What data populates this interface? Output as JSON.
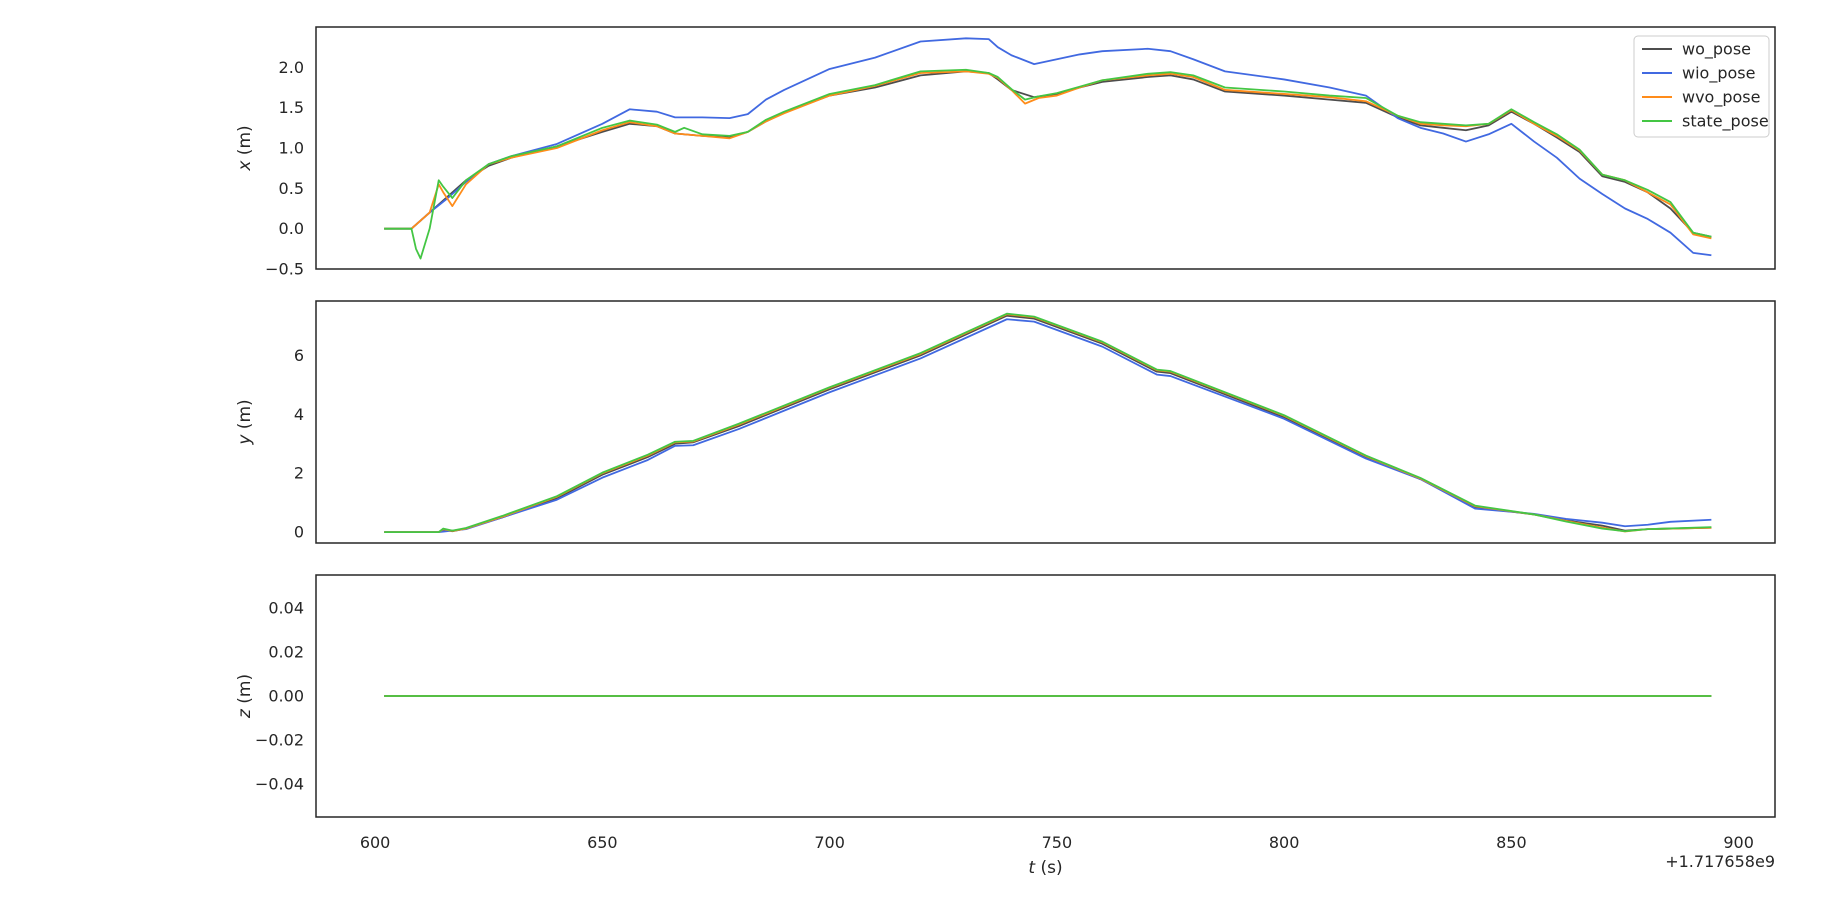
{
  "chart_data": [
    {
      "type": "line",
      "ylabel_var": "x",
      "ylabel_unit": " (m)",
      "xlim": [
        587,
        908
      ],
      "ylim": [
        -0.5,
        2.5
      ],
      "yticks": [
        -0.5,
        0.0,
        0.5,
        1.0,
        1.5,
        2.0
      ],
      "ytick_labels": [
        "−0.5",
        "0.0",
        "0.5",
        "1.0",
        "1.5",
        "2.0"
      ],
      "grid": false,
      "legend": "top-right",
      "series": [
        {
          "name": "wo_pose",
          "color": "#4d4d4d",
          "x": [
            602,
            608,
            612,
            616,
            620,
            625,
            630,
            640,
            650,
            656,
            662,
            666,
            672,
            678,
            682,
            686,
            690,
            700,
            710,
            720,
            730,
            735,
            737,
            740,
            745,
            750,
            755,
            760,
            770,
            775,
            780,
            787,
            800,
            810,
            818,
            825,
            830,
            835,
            840,
            845,
            850,
            855,
            860,
            865,
            870,
            875,
            880,
            885,
            890,
            894
          ],
          "y": [
            0.0,
            0.0,
            0.2,
            0.4,
            0.6,
            0.78,
            0.88,
            1.02,
            1.2,
            1.3,
            1.27,
            1.18,
            1.15,
            1.13,
            1.2,
            1.33,
            1.44,
            1.65,
            1.75,
            1.9,
            1.95,
            1.93,
            1.85,
            1.72,
            1.63,
            1.67,
            1.75,
            1.82,
            1.88,
            1.9,
            1.85,
            1.7,
            1.65,
            1.6,
            1.56,
            1.38,
            1.28,
            1.25,
            1.22,
            1.28,
            1.45,
            1.3,
            1.13,
            0.95,
            0.65,
            0.58,
            0.45,
            0.25,
            -0.05,
            -0.1
          ]
        },
        {
          "name": "wio_pose",
          "color": "#4169e1",
          "x": [
            602,
            608,
            612,
            616,
            620,
            625,
            630,
            640,
            650,
            656,
            662,
            666,
            672,
            678,
            682,
            686,
            690,
            700,
            710,
            720,
            730,
            735,
            737,
            740,
            745,
            750,
            755,
            760,
            770,
            775,
            780,
            787,
            800,
            810,
            818,
            825,
            830,
            835,
            840,
            845,
            850,
            855,
            860,
            865,
            870,
            875,
            880,
            885,
            890,
            894
          ],
          "y": [
            0.0,
            0.0,
            0.2,
            0.38,
            0.58,
            0.8,
            0.9,
            1.05,
            1.3,
            1.48,
            1.45,
            1.38,
            1.38,
            1.37,
            1.42,
            1.6,
            1.72,
            1.98,
            2.12,
            2.32,
            2.36,
            2.35,
            2.25,
            2.15,
            2.04,
            2.1,
            2.16,
            2.2,
            2.23,
            2.2,
            2.1,
            1.95,
            1.85,
            1.75,
            1.65,
            1.37,
            1.25,
            1.18,
            1.08,
            1.17,
            1.3,
            1.08,
            0.88,
            0.62,
            0.43,
            0.25,
            0.12,
            -0.05,
            -0.3,
            -0.33
          ]
        },
        {
          "name": "wvo_pose",
          "color": "#ff8c1a",
          "x": [
            602,
            608,
            612,
            614,
            615,
            617,
            620,
            625,
            630,
            640,
            650,
            656,
            662,
            666,
            672,
            678,
            682,
            686,
            690,
            700,
            710,
            720,
            730,
            735,
            737,
            740,
            743,
            746,
            750,
            755,
            760,
            770,
            775,
            780,
            787,
            800,
            810,
            818,
            825,
            830,
            835,
            840,
            845,
            850,
            855,
            860,
            865,
            870,
            875,
            880,
            885,
            890,
            894
          ],
          "y": [
            0.0,
            0.0,
            0.2,
            0.55,
            0.45,
            0.28,
            0.55,
            0.8,
            0.88,
            1.0,
            1.22,
            1.32,
            1.27,
            1.18,
            1.15,
            1.12,
            1.2,
            1.33,
            1.43,
            1.65,
            1.77,
            1.93,
            1.95,
            1.92,
            1.87,
            1.72,
            1.55,
            1.62,
            1.65,
            1.75,
            1.84,
            1.9,
            1.92,
            1.88,
            1.72,
            1.67,
            1.63,
            1.58,
            1.4,
            1.3,
            1.28,
            1.27,
            1.3,
            1.47,
            1.3,
            1.15,
            0.97,
            0.67,
            0.6,
            0.45,
            0.3,
            -0.07,
            -0.12
          ]
        },
        {
          "name": "state_pose",
          "color": "#44c644",
          "x": [
            602,
            608,
            609,
            610,
            612,
            614,
            615,
            617,
            620,
            625,
            630,
            640,
            650,
            656,
            662,
            666,
            668,
            672,
            678,
            682,
            686,
            690,
            700,
            710,
            720,
            730,
            735,
            737,
            740,
            743,
            746,
            750,
            755,
            760,
            770,
            775,
            780,
            787,
            800,
            810,
            818,
            825,
            830,
            835,
            840,
            845,
            850,
            855,
            860,
            865,
            870,
            875,
            880,
            885,
            890,
            894
          ],
          "y": [
            0.0,
            0.0,
            -0.25,
            -0.37,
            0.0,
            0.6,
            0.52,
            0.38,
            0.6,
            0.8,
            0.9,
            1.02,
            1.25,
            1.34,
            1.29,
            1.2,
            1.25,
            1.17,
            1.15,
            1.2,
            1.35,
            1.45,
            1.67,
            1.78,
            1.95,
            1.97,
            1.93,
            1.88,
            1.73,
            1.6,
            1.64,
            1.68,
            1.76,
            1.84,
            1.92,
            1.94,
            1.9,
            1.75,
            1.7,
            1.65,
            1.62,
            1.4,
            1.32,
            1.3,
            1.28,
            1.3,
            1.48,
            1.32,
            1.17,
            0.98,
            0.67,
            0.6,
            0.48,
            0.33,
            -0.05,
            -0.1
          ]
        }
      ]
    },
    {
      "type": "line",
      "ylabel_var": "y",
      "ylabel_unit": " (m)",
      "xlim": [
        587,
        908
      ],
      "ylim": [
        -0.37,
        7.85
      ],
      "yticks": [
        0,
        2,
        4,
        6
      ],
      "ytick_labels": [
        "0",
        "2",
        "4",
        "6"
      ],
      "grid": false,
      "series": [
        {
          "name": "wo_pose",
          "color": "#4d4d4d",
          "x": [
            602,
            614,
            615,
            617,
            620,
            628,
            640,
            650,
            660,
            666,
            670,
            680,
            700,
            720,
            739,
            745,
            760,
            772,
            775,
            800,
            818,
            830,
            842,
            855,
            862,
            870,
            875,
            880,
            894
          ],
          "y": [
            0.0,
            0.0,
            0.08,
            0.03,
            0.12,
            0.5,
            1.15,
            1.95,
            2.55,
            3.0,
            3.05,
            3.6,
            4.85,
            6.0,
            7.35,
            7.25,
            6.4,
            5.45,
            5.4,
            3.9,
            2.55,
            1.8,
            0.85,
            0.6,
            0.4,
            0.22,
            0.05,
            0.1,
            0.15
          ]
        },
        {
          "name": "wio_pose",
          "color": "#4169e1",
          "x": [
            602,
            614,
            620,
            628,
            640,
            650,
            660,
            666,
            670,
            680,
            700,
            720,
            739,
            745,
            760,
            772,
            775,
            800,
            818,
            830,
            842,
            855,
            862,
            870,
            875,
            880,
            885,
            894
          ],
          "y": [
            0.0,
            0.0,
            0.1,
            0.5,
            1.1,
            1.85,
            2.45,
            2.93,
            2.95,
            3.5,
            4.75,
            5.9,
            7.23,
            7.15,
            6.3,
            5.35,
            5.3,
            3.85,
            2.5,
            1.8,
            0.8,
            0.62,
            0.45,
            0.32,
            0.2,
            0.25,
            0.35,
            0.42
          ]
        },
        {
          "name": "wvo_pose",
          "color": "#ff8c1a",
          "x": [
            602,
            614,
            615,
            617,
            620,
            628,
            640,
            650,
            660,
            666,
            670,
            680,
            700,
            720,
            739,
            745,
            760,
            772,
            775,
            800,
            818,
            830,
            842,
            855,
            862,
            870,
            875,
            880,
            894
          ],
          "y": [
            0.0,
            0.0,
            0.1,
            0.04,
            0.12,
            0.52,
            1.2,
            2.0,
            2.6,
            3.05,
            3.08,
            3.65,
            4.9,
            6.05,
            7.4,
            7.3,
            6.45,
            5.5,
            5.45,
            3.95,
            2.58,
            1.82,
            0.88,
            0.6,
            0.38,
            0.15,
            0.02,
            0.1,
            0.15
          ]
        },
        {
          "name": "state_pose",
          "color": "#44c644",
          "x": [
            602,
            614,
            615,
            617,
            620,
            628,
            640,
            650,
            660,
            666,
            670,
            680,
            700,
            720,
            739,
            745,
            760,
            772,
            775,
            800,
            818,
            830,
            842,
            855,
            862,
            870,
            875,
            880,
            894
          ],
          "y": [
            0.0,
            0.0,
            0.12,
            0.05,
            0.14,
            0.55,
            1.22,
            2.02,
            2.63,
            3.07,
            3.1,
            3.68,
            4.92,
            6.08,
            7.42,
            7.32,
            6.47,
            5.52,
            5.47,
            3.97,
            2.6,
            1.84,
            0.9,
            0.6,
            0.36,
            0.12,
            0.03,
            0.1,
            0.17
          ]
        }
      ]
    },
    {
      "type": "line",
      "ylabel_var": "z",
      "ylabel_unit": " (m)",
      "xlim": [
        587,
        908
      ],
      "ylim": [
        -0.055,
        0.055
      ],
      "yticks": [
        -0.04,
        -0.02,
        0.0,
        0.02,
        0.04
      ],
      "ytick_labels": [
        "−0.04",
        "−0.02",
        "0.00",
        "0.02",
        "0.04"
      ],
      "xticks": [
        600,
        650,
        700,
        750,
        800,
        850,
        900
      ],
      "xtick_labels": [
        "600",
        "650",
        "700",
        "750",
        "800",
        "850",
        "900"
      ],
      "xlabel_var": "t",
      "xlabel_unit": " (s)",
      "x_offset_label": "+1.717658e9",
      "grid": false,
      "series": [
        {
          "name": "wo_pose",
          "color": "#4d4d4d",
          "x": [
            602,
            894
          ],
          "y": [
            0.0,
            0.0
          ]
        },
        {
          "name": "wio_pose",
          "color": "#4169e1",
          "x": [
            602,
            894
          ],
          "y": [
            0.0,
            0.0
          ]
        },
        {
          "name": "wvo_pose",
          "color": "#ff8c1a",
          "x": [
            602,
            894
          ],
          "y": [
            0.0,
            0.0
          ]
        },
        {
          "name": "state_pose",
          "color": "#44c644",
          "x": [
            602,
            894
          ],
          "y": [
            0.0,
            0.0
          ]
        }
      ]
    }
  ]
}
